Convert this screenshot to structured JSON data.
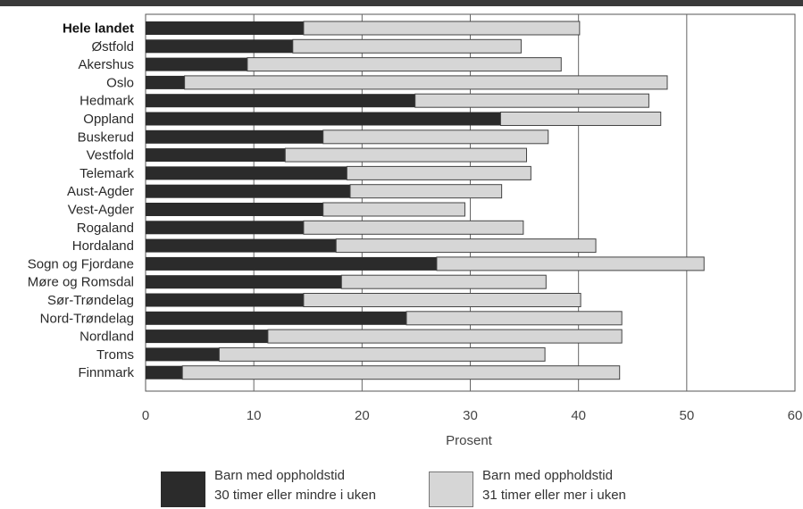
{
  "chart_data": {
    "type": "bar",
    "orientation": "horizontal",
    "stacked": true,
    "categories": [
      "Hele landet",
      "Østfold",
      "Akershus",
      "Oslo",
      "Hedmark",
      "Oppland",
      "Buskerud",
      "Vestfold",
      "Telemark",
      "Aust-Agder",
      "Vest-Agder",
      "Rogaland",
      "Hordaland",
      "Sogn og Fjordane",
      "Møre og Romsdal",
      "Sør-Trøndelag",
      "Nord-Trøndelag",
      "Nordland",
      "Troms",
      "Finnmark"
    ],
    "series": [
      {
        "name": "Barn med oppholdstid 30 timer eller mindre i uken",
        "color": "#2b2b2b",
        "values": [
          14.6,
          13.6,
          9.4,
          3.6,
          24.9,
          32.8,
          16.4,
          12.9,
          18.6,
          18.9,
          16.4,
          14.6,
          17.6,
          26.9,
          18.1,
          14.6,
          24.1,
          11.3,
          6.8,
          3.4
        ]
      },
      {
        "name": "Barn med oppholdstid 31 timer eller mer i uken",
        "color": "#d6d6d6",
        "values": [
          25.5,
          21.1,
          29.0,
          44.6,
          21.6,
          14.8,
          20.8,
          22.3,
          17.0,
          14.0,
          13.1,
          20.3,
          24.0,
          24.7,
          18.9,
          25.6,
          19.9,
          32.7,
          30.1,
          40.4
        ]
      }
    ],
    "xlabel": "Prosent",
    "xlim": [
      0,
      60
    ],
    "xticks": [
      "0",
      "10",
      "20",
      "30",
      "40",
      "50",
      "60"
    ],
    "grid": true,
    "legend": {
      "position": "bottom",
      "items": [
        {
          "line1": "Barn med oppholdstid",
          "line2": "30 timer eller mindre i uken",
          "color": "#2b2b2b"
        },
        {
          "line1": "Barn med oppholdstid",
          "line2": "31 timer eller mer i uken",
          "color": "#d6d6d6"
        }
      ]
    }
  }
}
